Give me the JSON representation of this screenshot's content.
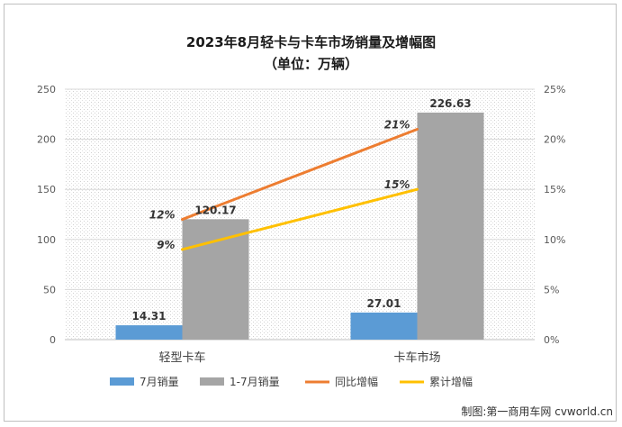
{
  "chart_data": {
    "type": "bar",
    "title": "2023年8月轻卡与卡车市场销量及增幅图",
    "subtitle": "（单位：万辆）",
    "categories": [
      "轻型卡车",
      "卡车市场"
    ],
    "series": [
      {
        "name": "7月销量",
        "kind": "bar",
        "axis": "left",
        "color": "#5b9bd5",
        "values": [
          14.31,
          27.01
        ],
        "labels": [
          "14.31",
          "27.01"
        ]
      },
      {
        "name": "1-7月销量",
        "kind": "bar",
        "axis": "left",
        "color": "#a5a5a5",
        "values": [
          120.17,
          226.63
        ],
        "labels": [
          "120.17",
          "226.63"
        ]
      },
      {
        "name": "同比增幅",
        "kind": "line",
        "axis": "right",
        "color": "#ed7d31",
        "values": [
          12,
          21
        ],
        "labels": [
          "12%",
          "21%"
        ]
      },
      {
        "name": "累计增幅",
        "kind": "line",
        "axis": "right",
        "color": "#ffc000",
        "values": [
          9,
          15
        ],
        "labels": [
          "9%",
          "15%"
        ]
      }
    ],
    "ylim": [
      0,
      250
    ],
    "yticks": [
      "0",
      "50",
      "100",
      "150",
      "200",
      "250"
    ],
    "y2lim": [
      0,
      25
    ],
    "y2ticks": [
      "0%",
      "5%",
      "10%",
      "15%",
      "20%",
      "25%"
    ],
    "grid": true,
    "legend": "bottom"
  },
  "credit": "制图:第一商用车网 cvworld.cn"
}
